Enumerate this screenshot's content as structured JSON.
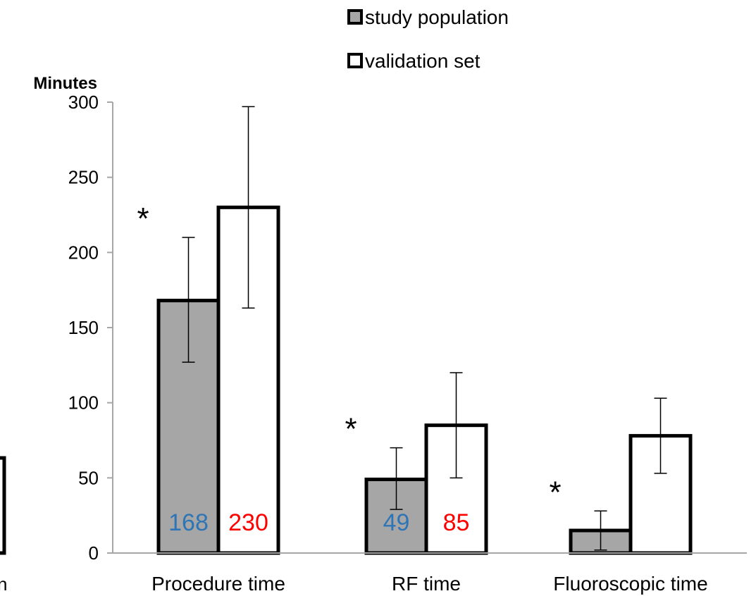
{
  "chart_data": {
    "type": "bar",
    "ylabel": "Minutes",
    "ylim": [
      0,
      300
    ],
    "yticks": [
      0,
      50,
      100,
      150,
      200,
      250,
      300
    ],
    "categories": [
      "Procedure time",
      "RF time",
      "Fluoroscopic time"
    ],
    "series": [
      {
        "name": "study population",
        "color": "#a6a6a6",
        "values": [
          168,
          49,
          15
        ],
        "error_low": [
          127,
          29,
          2
        ],
        "error_high": [
          210,
          70,
          28
        ],
        "value_labels": [
          "168",
          "49",
          ""
        ],
        "value_label_color": "#2e75b6"
      },
      {
        "name": "validation set",
        "color": "#ffffff",
        "values": [
          230,
          85,
          78
        ],
        "error_low": [
          163,
          50,
          53
        ],
        "error_high": [
          297,
          120,
          103
        ],
        "value_labels": [
          "230",
          "85",
          ""
        ],
        "value_label_color": "#ff0000"
      }
    ],
    "significance_markers": [
      "*",
      "*",
      "*"
    ],
    "legend_position": "top",
    "grid": false,
    "left_edge_partial_text": "n"
  }
}
